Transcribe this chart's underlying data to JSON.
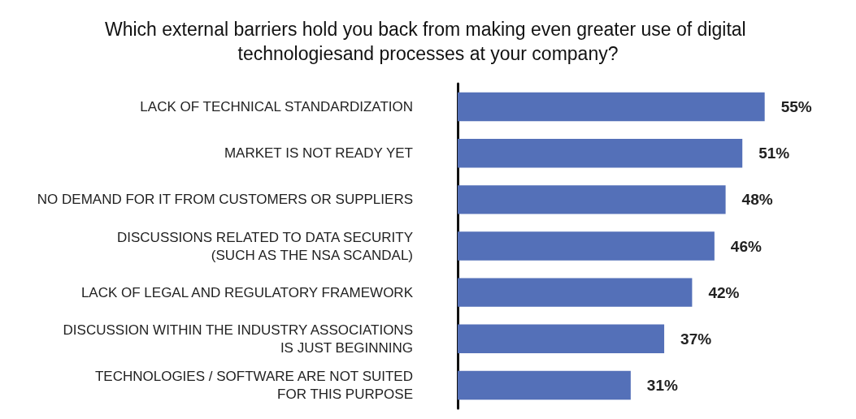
{
  "chart_data": {
    "type": "bar",
    "orientation": "horizontal",
    "title": "Which external barriers hold you back from making even greater use of digital technologiesand processes at your company?",
    "categories": [
      "LACK OF TECHNICAL STANDARDIZATION",
      "MARKET IS NOT READY YET",
      "NO DEMAND FOR IT FROM CUSTOMERS OR SUPPLIERS",
      "DISCUSSIONS RELATED TO DATA SECURITY\n(SUCH AS THE NSA SCANDAL)",
      "LACK OF LEGAL AND REGULATORY FRAMEWORK",
      "DISCUSSION WITHIN THE INDUSTRY ASSOCIATIONS\nIS JUST BEGINNING",
      "TECHNOLOGIES / SOFTWARE ARE NOT SUITED\nFOR THIS PURPOSE"
    ],
    "values": [
      55,
      51,
      48,
      46,
      42,
      37,
      31
    ],
    "value_labels": [
      "55%",
      "51%",
      "48%",
      "46%",
      "42%",
      "37%",
      "31%"
    ],
    "color": "#5470b8",
    "tick_labels": "y"
  }
}
